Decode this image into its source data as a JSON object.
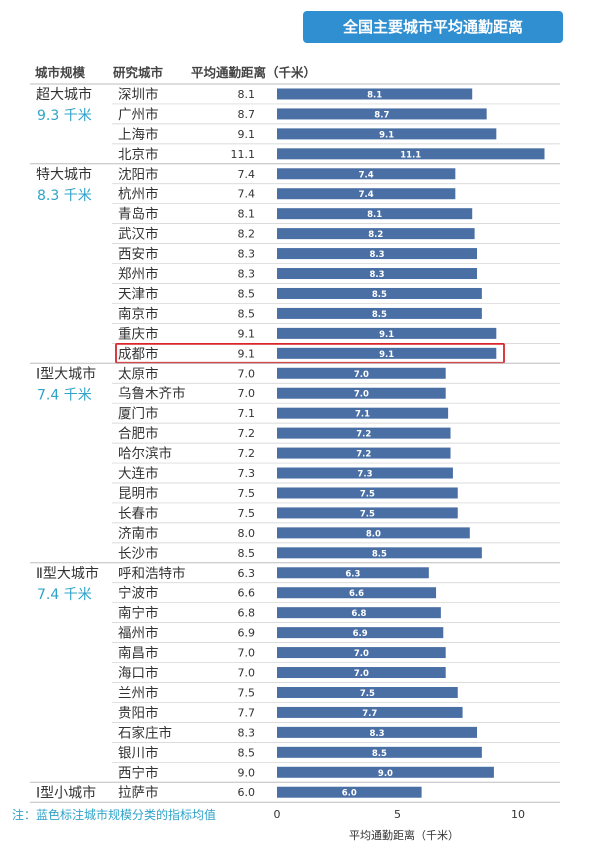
{
  "chart_data": {
    "type": "bar",
    "orientation": "horizontal",
    "title": "全国主要城市平均通勤距离",
    "headers": [
      "城市规模",
      "研究城市",
      "平均通勤距离（千米）"
    ],
    "xlabel": "平均通勤距离（千米）",
    "xlim": [
      0,
      11.3
    ],
    "xticks": [
      "0",
      "5",
      "10"
    ],
    "groups": [
      {
        "name": "超大城市",
        "avg": "9.3 千米",
        "cities": [
          "深圳市",
          "广州市",
          "上海市",
          "北京市"
        ],
        "values": [
          8.1,
          8.7,
          9.1,
          11.1
        ],
        "labels": [
          "8.1",
          "8.7",
          "9.1",
          "11.1"
        ]
      },
      {
        "name": "特大城市",
        "avg": "8.3 千米",
        "cities": [
          "沈阳市",
          "杭州市",
          "青岛市",
          "武汉市",
          "西安市",
          "郑州市",
          "天津市",
          "南京市",
          "重庆市",
          "成都市"
        ],
        "values": [
          7.4,
          7.4,
          8.1,
          8.2,
          8.3,
          8.3,
          8.5,
          8.5,
          9.1,
          9.1
        ],
        "labels": [
          "7.4",
          "7.4",
          "8.1",
          "8.2",
          "8.3",
          "8.3",
          "8.5",
          "8.5",
          "9.1",
          "9.1"
        ]
      },
      {
        "name": "Ⅰ型大城市",
        "avg": "7.4 千米",
        "cities": [
          "太原市",
          "乌鲁木齐市",
          "厦门市",
          "合肥市",
          "哈尔滨市",
          "大连市",
          "昆明市",
          "长春市",
          "济南市",
          "长沙市"
        ],
        "values": [
          7.0,
          7.0,
          7.1,
          7.2,
          7.2,
          7.3,
          7.5,
          7.5,
          8.0,
          8.5
        ],
        "labels": [
          "7.0",
          "7.0",
          "7.1",
          "7.2",
          "7.2",
          "7.3",
          "7.5",
          "7.5",
          "8.0",
          "8.5"
        ]
      },
      {
        "name": "Ⅱ型大城市",
        "avg": "7.4 千米",
        "cities": [
          "呼和浩特市",
          "宁波市",
          "南宁市",
          "福州市",
          "南昌市",
          "海口市",
          "兰州市",
          "贵阳市",
          "石家庄市",
          "银川市",
          "西宁市"
        ],
        "values": [
          6.3,
          6.6,
          6.8,
          6.9,
          7.0,
          7.0,
          7.5,
          7.7,
          8.3,
          8.5,
          9.0
        ],
        "labels": [
          "6.3",
          "6.6",
          "6.8",
          "6.9",
          "7.0",
          "7.0",
          "7.5",
          "7.7",
          "8.3",
          "8.5",
          "9.0"
        ]
      },
      {
        "name": "Ⅰ型小城市",
        "avg": "",
        "cities": [
          "拉萨市"
        ],
        "values": [
          6.0
        ],
        "labels": [
          "6.0"
        ]
      }
    ],
    "highlight": "成都市",
    "bar_color": "#4a6fa5",
    "avg_color": "#2fa3c8",
    "highlight_color": "#d9262a",
    "footnote": "注：蓝色标注城市规模分类的指标均值"
  }
}
